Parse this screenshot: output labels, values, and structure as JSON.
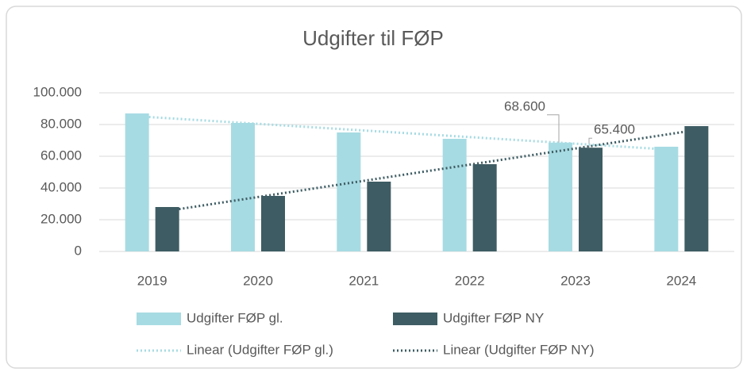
{
  "chart_data": {
    "type": "bar",
    "title": "Udgifter til FØP",
    "categories": [
      "2019",
      "2020",
      "2021",
      "2022",
      "2023",
      "2024"
    ],
    "series": [
      {
        "name": "Udgifter FØP gl.",
        "color": "#a7dbe3",
        "values": [
          87000,
          81000,
          75000,
          71000,
          68600,
          66000
        ],
        "value_labels": [
          null,
          null,
          null,
          null,
          "68.600",
          null
        ],
        "trendline": {
          "name": "Linear (Udgifter FØP gl.)",
          "type": "linear"
        }
      },
      {
        "name": "Udgifter FØP NY",
        "color": "#3e5c63",
        "values": [
          28000,
          35000,
          44000,
          55000,
          65400,
          79000
        ],
        "value_labels": [
          null,
          null,
          null,
          null,
          "65.400",
          null
        ],
        "trendline": {
          "name": "Linear (Udgifter FØP NY)",
          "type": "linear"
        }
      }
    ],
    "ylim": [
      0,
      100000
    ],
    "yticks": [
      0,
      {
        "value": 20000,
        "label": "20.000"
      },
      {
        "value": 40000,
        "label": "40.000"
      },
      {
        "value": 60000,
        "label": "60.000"
      },
      {
        "value": 80000,
        "label": "80.000"
      },
      {
        "value": 100000,
        "label": "100.000"
      }
    ],
    "grid": true,
    "legend": "bottom"
  }
}
